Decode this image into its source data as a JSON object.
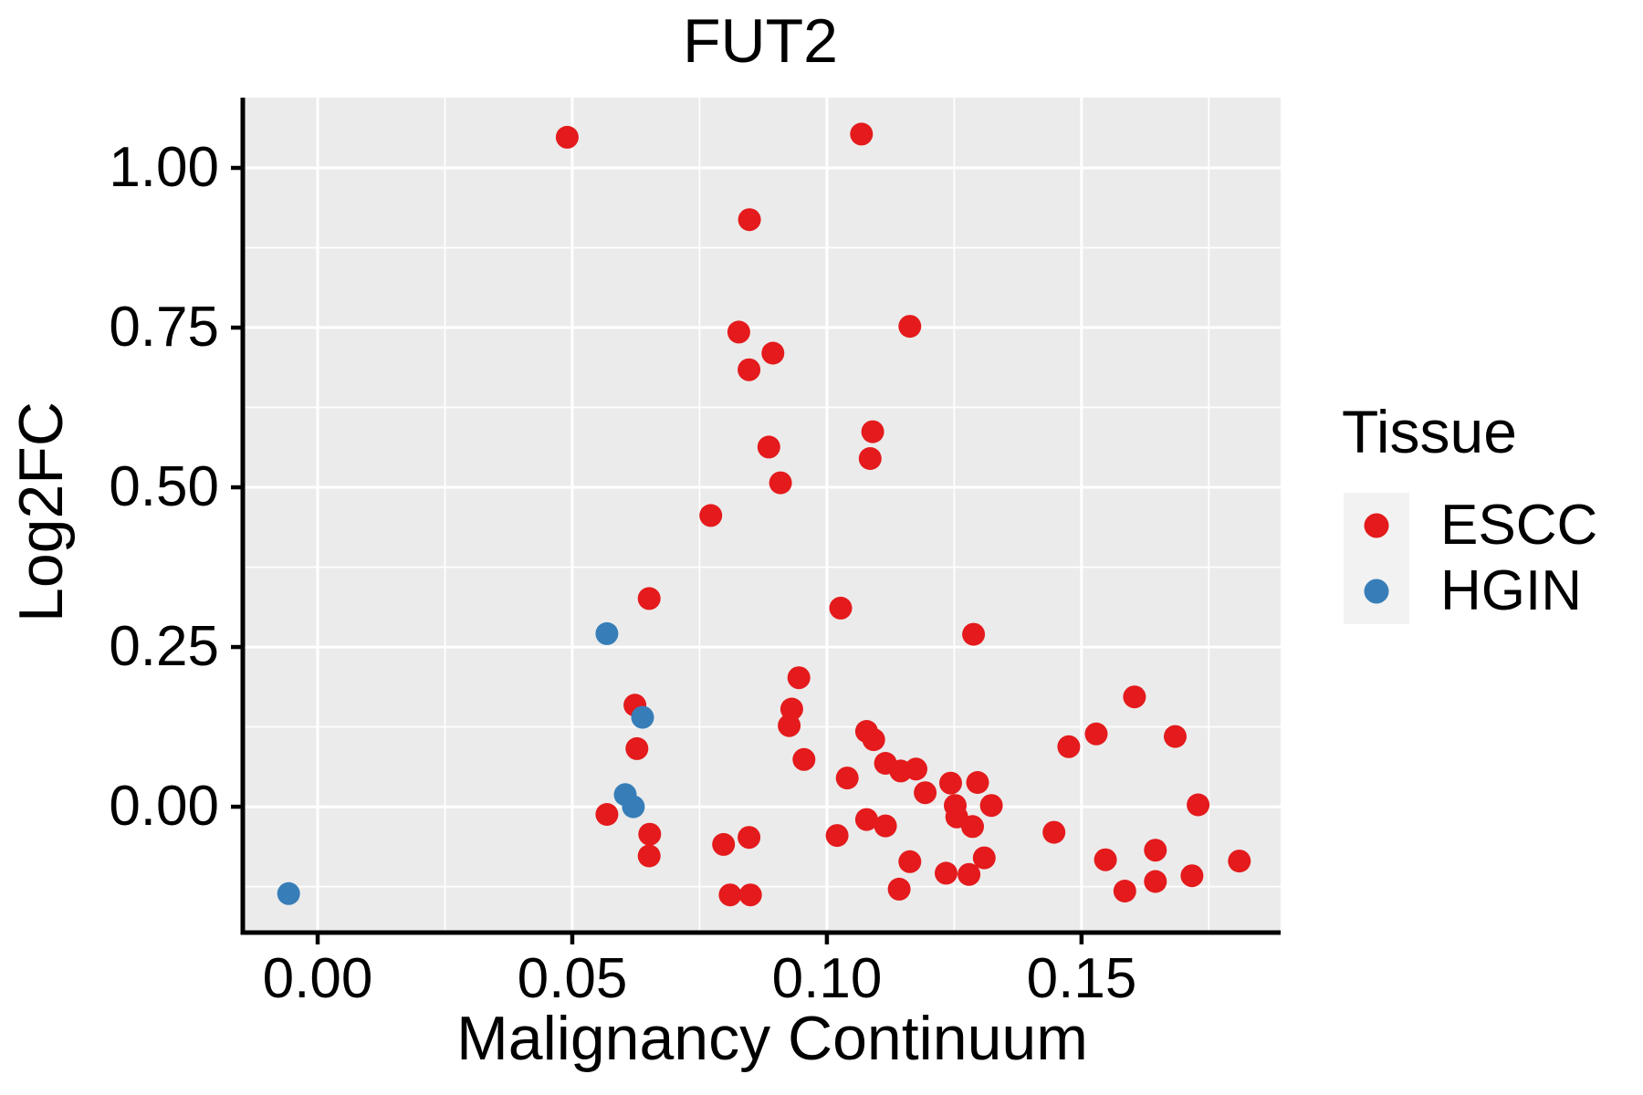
{
  "chart_data": {
    "type": "scatter",
    "title": "FUT2",
    "xlabel": "Malignancy Continuum",
    "ylabel": "Log2FC",
    "legend": {
      "title": "Tissue",
      "position": "right",
      "entries": [
        {
          "label": "ESCC",
          "color": "#E41A1C"
        },
        {
          "label": "HGIN",
          "color": "#377EB8"
        }
      ]
    },
    "panel_bg": "#EBEBEB",
    "grid_color": "#FFFFFF",
    "legend_key_bg": "#F2F2F2",
    "axis_color": "#000000",
    "grid": true,
    "xlim": [
      -0.0147,
      0.1891
    ],
    "ylim": [
      -0.197,
      1.11
    ],
    "x_ticks": {
      "values": [
        0.0,
        0.05,
        0.1,
        0.15
      ],
      "labels": [
        "0.00",
        "0.05",
        "0.10",
        "0.15"
      ]
    },
    "y_ticks": {
      "values": [
        0.0,
        0.25,
        0.5,
        0.75,
        1.0
      ],
      "labels": [
        "0.00",
        "0.25",
        "0.50",
        "0.75",
        "1.00"
      ]
    },
    "x_minor": [
      0.025,
      0.075,
      0.125,
      0.175
    ],
    "y_minor": [
      -0.125,
      0.125,
      0.375,
      0.625,
      0.875
    ],
    "series": [
      {
        "name": "ESCC",
        "color": "#E41A1C",
        "points": [
          [
            0.049,
            1.048
          ],
          [
            0.1068,
            1.053
          ],
          [
            0.0848,
            0.919
          ],
          [
            0.0827,
            0.743
          ],
          [
            0.1163,
            0.752
          ],
          [
            0.0894,
            0.71
          ],
          [
            0.0847,
            0.684
          ],
          [
            0.0886,
            0.563
          ],
          [
            0.109,
            0.587
          ],
          [
            0.1085,
            0.545
          ],
          [
            0.0909,
            0.507
          ],
          [
            0.0772,
            0.456
          ],
          [
            0.0651,
            0.326
          ],
          [
            0.1027,
            0.311
          ],
          [
            0.1288,
            0.27
          ],
          [
            0.0945,
            0.202
          ],
          [
            0.0623,
            0.159
          ],
          [
            0.1604,
            0.172
          ],
          [
            0.0931,
            0.153
          ],
          [
            0.0926,
            0.127
          ],
          [
            0.1078,
            0.118
          ],
          [
            0.1092,
            0.105
          ],
          [
            0.1529,
            0.114
          ],
          [
            0.1475,
            0.094
          ],
          [
            0.1684,
            0.11
          ],
          [
            0.1115,
            0.068
          ],
          [
            0.1145,
            0.056
          ],
          [
            0.1175,
            0.059
          ],
          [
            0.104,
            0.045
          ],
          [
            0.0627,
            0.091
          ],
          [
            0.0955,
            0.074
          ],
          [
            0.1193,
            0.022
          ],
          [
            0.1243,
            0.037
          ],
          [
            0.1296,
            0.038
          ],
          [
            0.1252,
            0.002
          ],
          [
            0.1323,
            0.002
          ],
          [
            0.1255,
            -0.016
          ],
          [
            0.1286,
            -0.031
          ],
          [
            0.1078,
            -0.02
          ],
          [
            0.1115,
            -0.03
          ],
          [
            0.102,
            -0.045
          ],
          [
            0.1446,
            -0.04
          ],
          [
            0.0568,
            -0.012
          ],
          [
            0.0652,
            -0.043
          ],
          [
            0.0651,
            -0.077
          ],
          [
            0.0797,
            -0.059
          ],
          [
            0.0847,
            -0.048
          ],
          [
            0.1163,
            -0.086
          ],
          [
            0.1309,
            -0.08
          ],
          [
            0.1234,
            -0.104
          ],
          [
            0.1279,
            -0.106
          ],
          [
            0.1142,
            -0.129
          ],
          [
            0.081,
            -0.138
          ],
          [
            0.085,
            -0.138
          ],
          [
            0.1729,
            0.003
          ],
          [
            0.1547,
            -0.083
          ],
          [
            0.1645,
            -0.068
          ],
          [
            0.1645,
            -0.117
          ],
          [
            0.181,
            -0.085
          ],
          [
            0.1717,
            -0.108
          ],
          [
            0.1585,
            -0.132
          ]
        ]
      },
      {
        "name": "HGIN",
        "color": "#377EB8",
        "points": [
          [
            -0.0057,
            -0.136
          ],
          [
            0.0604,
            0.019
          ],
          [
            0.062,
            0.0
          ],
          [
            0.0568,
            0.271
          ],
          [
            0.0638,
            0.14
          ]
        ]
      }
    ]
  }
}
